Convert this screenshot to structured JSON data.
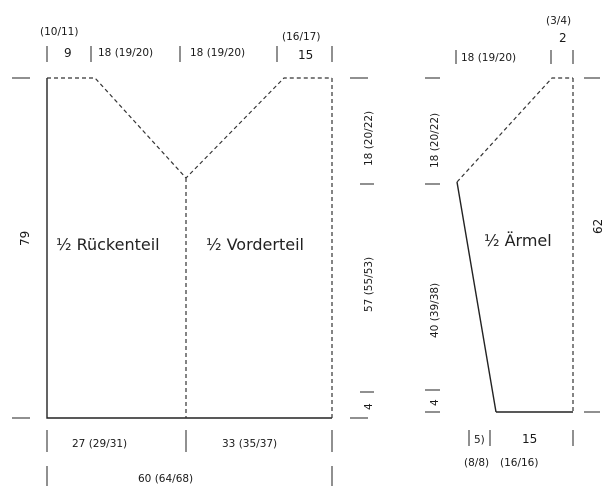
{
  "top_measures": {
    "m1_alt": "(10/11)",
    "m1": "9",
    "m2": "18 (19/20)",
    "m3": "18 (19/20)",
    "m4_alt": "(16/17)",
    "m4": "15",
    "sleeve_alt": "(3/4)",
    "sleeve_top": "2",
    "sleeve_width": "18 (19/20)"
  },
  "body": {
    "height_total": "79",
    "neck_depth": "18 (20/22)",
    "side_height": "57 (55/53)",
    "hem": "4",
    "back_label": "½ Rückenteil",
    "front_label": "½ Vorderteil",
    "back_width": "27 (29/31)",
    "front_width": "33 (35/37)",
    "total_width": "60 (64/68)"
  },
  "sleeve": {
    "label": "½ Ärmel",
    "cap": "18 (20/22)",
    "length": "40 (39/38)",
    "hem": "4",
    "total": "62",
    "bottom_a": "5)",
    "bottom_a_alt": "(8/8)",
    "bottom_b": "15",
    "bottom_b_alt": "(16/16)"
  }
}
